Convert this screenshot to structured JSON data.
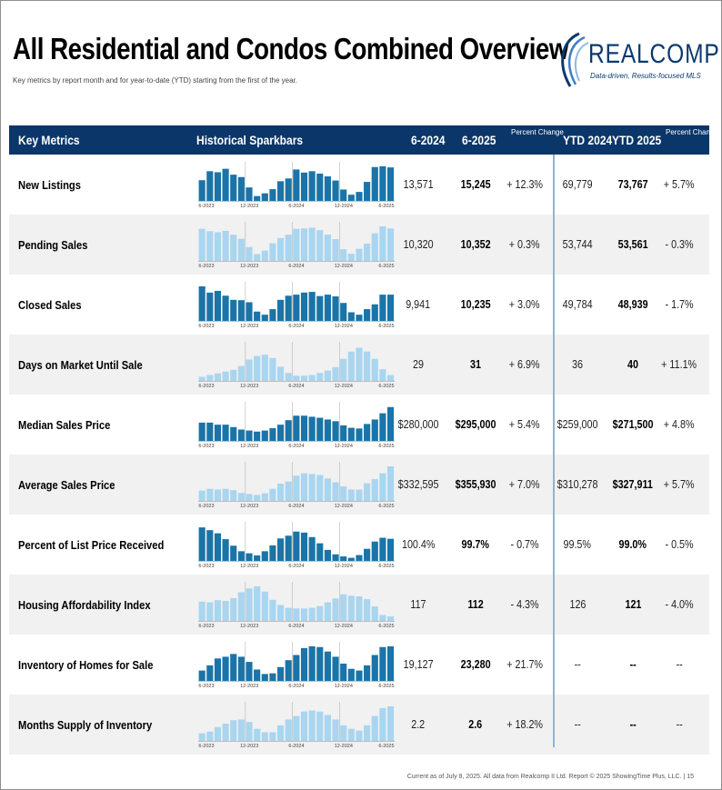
{
  "title": "All Residential and Condos Combined Overview",
  "subtitle": "Key metrics by report month and for year-to-date (YTD) starting from the first of the year.",
  "logo": {
    "name": "REALCOMP",
    "tagline": "Data-driven, Results-focused MLS"
  },
  "header": {
    "key_metrics": "Key Metrics",
    "sparkbars": "Historical Sparkbars",
    "col1": "6-2024",
    "col2": "6-2025",
    "pct1": "Percent Change",
    "ytd1": "YTD 2024",
    "ytd2": "YTD 2025",
    "pct2": "Percent Change"
  },
  "spark_axis_labels": [
    "6-2023",
    "12-2023",
    "6-2024",
    "12-2024",
    "6-2025"
  ],
  "colors": {
    "dark": "#1a74a8",
    "light": "#a9d5f0",
    "header": "#0b3669",
    "divider": "#8ab6d9"
  },
  "rows": [
    {
      "metric": "New Listings",
      "v2024": "13,571",
      "v2025": "15,245",
      "pct": "+ 12.3%",
      "ytd2024": "69,779",
      "ytd2025": "73,767",
      "ytdpct": "+ 5.7%",
      "style": "dark",
      "bars": [
        0.6,
        0.86,
        0.83,
        0.93,
        0.76,
        0.69,
        0.39,
        0.14,
        0.22,
        0.34,
        0.57,
        0.65,
        0.91,
        0.82,
        0.86,
        0.79,
        0.71,
        0.59,
        0.33,
        0.18,
        0.26,
        0.55,
        0.98,
        1.0,
        0.97
      ]
    },
    {
      "metric": "Pending Sales",
      "v2024": "10,320",
      "v2025": "10,352",
      "pct": "+ 0.3%",
      "ytd2024": "53,744",
      "ytd2025": "53,561",
      "ytdpct": "- 0.3%",
      "style": "light",
      "bars": [
        0.93,
        0.86,
        0.83,
        0.87,
        0.76,
        0.64,
        0.4,
        0.2,
        0.3,
        0.51,
        0.66,
        0.76,
        0.93,
        0.94,
        0.96,
        0.89,
        0.76,
        0.63,
        0.34,
        0.21,
        0.35,
        0.5,
        0.8,
        1.0,
        0.94
      ]
    },
    {
      "metric": "Closed Sales",
      "v2024": "9,941",
      "v2025": "10,235",
      "pct": "+ 3.0%",
      "ytd2024": "49,784",
      "ytd2025": "48,939",
      "ytdpct": "- 1.7%",
      "style": "dark",
      "bars": [
        1.0,
        0.82,
        0.87,
        0.73,
        0.61,
        0.6,
        0.54,
        0.27,
        0.18,
        0.34,
        0.61,
        0.73,
        0.76,
        0.82,
        0.84,
        0.72,
        0.76,
        0.71,
        0.52,
        0.25,
        0.18,
        0.34,
        0.48,
        0.76,
        0.76
      ]
    },
    {
      "metric": "Days on Market Until Sale",
      "v2024": "29",
      "v2025": "31",
      "pct": "+ 6.9%",
      "ytd2024": "36",
      "ytd2025": "40",
      "ytdpct": "+ 11.1%",
      "style": "light",
      "bars": [
        0.12,
        0.17,
        0.22,
        0.27,
        0.32,
        0.43,
        0.62,
        0.72,
        0.76,
        0.66,
        0.41,
        0.23,
        0.15,
        0.15,
        0.17,
        0.23,
        0.3,
        0.4,
        0.64,
        0.85,
        0.96,
        0.85,
        0.64,
        0.34,
        0.17
      ]
    },
    {
      "metric": "Median Sales Price",
      "v2024": "$280,000",
      "v2025": "$295,000",
      "pct": "+ 5.4%",
      "ytd2024": "$259,000",
      "ytd2025": "$271,500",
      "ytdpct": "+ 4.8%",
      "style": "dark",
      "bars": [
        0.53,
        0.53,
        0.47,
        0.47,
        0.4,
        0.33,
        0.3,
        0.27,
        0.3,
        0.37,
        0.47,
        0.6,
        0.73,
        0.73,
        0.7,
        0.67,
        0.62,
        0.57,
        0.45,
        0.38,
        0.36,
        0.49,
        0.62,
        0.8,
        0.98
      ]
    },
    {
      "metric": "Average Sales Price",
      "v2024": "$332,595",
      "v2025": "$355,930",
      "pct": "+ 7.0%",
      "ytd2024": "$310,278",
      "ytd2025": "$327,911",
      "ytdpct": "+ 5.7%",
      "style": "light",
      "bars": [
        0.3,
        0.35,
        0.33,
        0.35,
        0.31,
        0.23,
        0.2,
        0.17,
        0.22,
        0.35,
        0.5,
        0.56,
        0.73,
        0.8,
        0.78,
        0.75,
        0.65,
        0.54,
        0.42,
        0.33,
        0.33,
        0.51,
        0.63,
        0.8,
        1.0
      ]
    },
    {
      "metric": "Percent of List Price Received",
      "v2024": "100.4%",
      "v2025": "99.7%",
      "pct": "- 0.7%",
      "ytd2024": "99.5%",
      "ytd2025": "99.0%",
      "ytdpct": "- 0.5%",
      "style": "dark",
      "bars": [
        0.97,
        0.89,
        0.8,
        0.63,
        0.44,
        0.28,
        0.22,
        0.16,
        0.28,
        0.45,
        0.65,
        0.73,
        0.85,
        0.82,
        0.69,
        0.51,
        0.32,
        0.19,
        0.13,
        0.09,
        0.17,
        0.35,
        0.56,
        0.67,
        0.64
      ]
    },
    {
      "metric": "Housing Affordability Index",
      "v2024": "117",
      "v2025": "112",
      "pct": "- 4.3%",
      "ytd2024": "126",
      "ytd2025": "121",
      "ytdpct": "- 4.0%",
      "style": "light",
      "bars": [
        0.56,
        0.54,
        0.6,
        0.58,
        0.66,
        0.83,
        0.94,
        1.0,
        0.85,
        0.61,
        0.46,
        0.38,
        0.36,
        0.36,
        0.38,
        0.43,
        0.54,
        0.65,
        0.77,
        0.73,
        0.71,
        0.63,
        0.42,
        0.17,
        0.13
      ]
    },
    {
      "metric": "Inventory of Homes for Sale",
      "v2024": "19,127",
      "v2025": "23,280",
      "pct": "+ 21.7%",
      "ytd2024": "--",
      "ytd2025": "--",
      "ytdpct": "--",
      "style": "dark",
      "bars": [
        0.3,
        0.45,
        0.65,
        0.7,
        0.78,
        0.7,
        0.55,
        0.33,
        0.2,
        0.22,
        0.4,
        0.6,
        0.75,
        0.95,
        1.0,
        0.98,
        0.85,
        0.7,
        0.5,
        0.35,
        0.3,
        0.45,
        0.75,
        0.98,
        1.0
      ]
    },
    {
      "metric": "Months Supply of Inventory",
      "v2024": "2.2",
      "v2025": "2.6",
      "pct": "+ 18.2%",
      "ytd2024": "--",
      "ytd2025": "--",
      "ytdpct": "--",
      "style": "light",
      "bars": [
        0.22,
        0.27,
        0.4,
        0.5,
        0.6,
        0.62,
        0.55,
        0.35,
        0.25,
        0.25,
        0.45,
        0.62,
        0.72,
        0.85,
        0.88,
        0.85,
        0.75,
        0.62,
        0.45,
        0.35,
        0.3,
        0.45,
        0.72,
        0.95,
        1.0
      ]
    }
  ],
  "footer": "Current as of July 8, 2025. All data from Realcomp II Ltd. Report © 2025 ShowingTime Plus, LLC. | 15"
}
